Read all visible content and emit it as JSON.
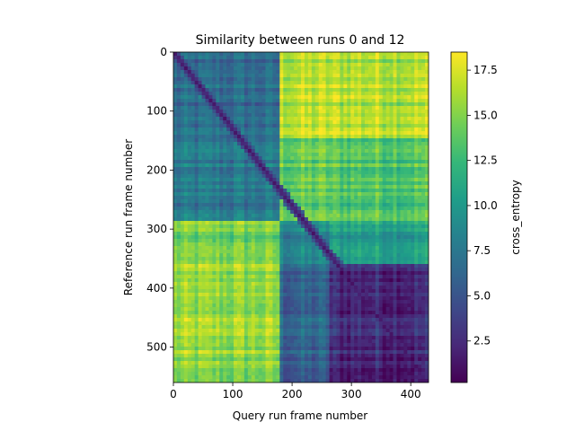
{
  "chart_data": {
    "type": "heatmap",
    "title": "Similarity between runs 0 and 12",
    "xlabel": "Query run frame number",
    "ylabel": "Reference run frame number",
    "colorbar_label": "cross_entropy",
    "colormap": "viridis",
    "xlim": [
      0,
      430
    ],
    "ylim": [
      560,
      0
    ],
    "x_ticks": [
      0,
      100,
      200,
      300,
      400
    ],
    "y_ticks": [
      0,
      100,
      200,
      300,
      400,
      500
    ],
    "colorbar_range": [
      0.2,
      18.5
    ],
    "colorbar_ticks": [
      2.5,
      5.0,
      7.5,
      10.0,
      12.5,
      15.0,
      17.5
    ],
    "x_segments": [
      0,
      182,
      265,
      430
    ],
    "y_segments": [
      0,
      148,
      285,
      360,
      560
    ],
    "block_values": [
      [
        6.5,
        16.5,
        16.5
      ],
      [
        7.5,
        14.0,
        13.5
      ],
      [
        14.5,
        8.5,
        10.5
      ],
      [
        15.5,
        6.0,
        2.5
      ]
    ],
    "diagonal_value": 1.0
  }
}
